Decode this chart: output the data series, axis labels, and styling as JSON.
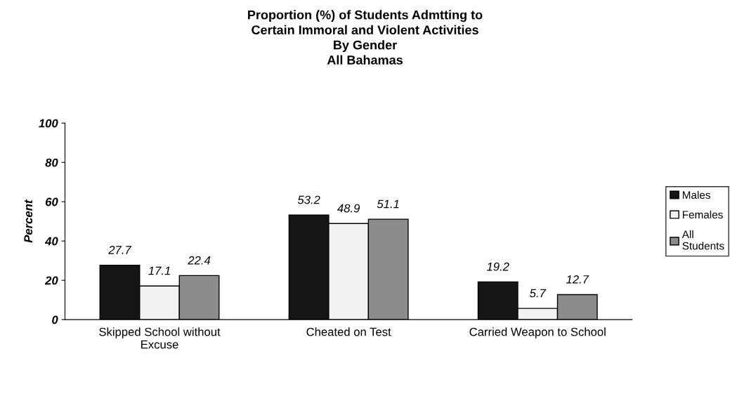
{
  "chart_data": {
    "type": "bar",
    "title": "Proportion (%) of Students Admtting to\nCertain Immoral and Violent Activities\nBy Gender\nAll Bahamas",
    "categories": [
      "Skipped School without\nExcuse",
      "Cheated on Test",
      "Carried Weapon to School"
    ],
    "series": [
      {
        "name": "Males",
        "color": "#151515",
        "values": [
          27.7,
          53.2,
          19.2
        ]
      },
      {
        "name": "Females",
        "color": "#f2f2f2",
        "values": [
          17.1,
          48.9,
          5.7
        ]
      },
      {
        "name": "All\nStudents",
        "color": "#8c8c8c",
        "values": [
          22.4,
          51.1,
          12.7
        ]
      }
    ],
    "ylabel": "Percent",
    "ylim": [
      0,
      100
    ],
    "yticks": [
      0,
      20,
      40,
      60,
      80,
      100
    ],
    "data_labels": true,
    "grid": false,
    "legend": "right"
  }
}
